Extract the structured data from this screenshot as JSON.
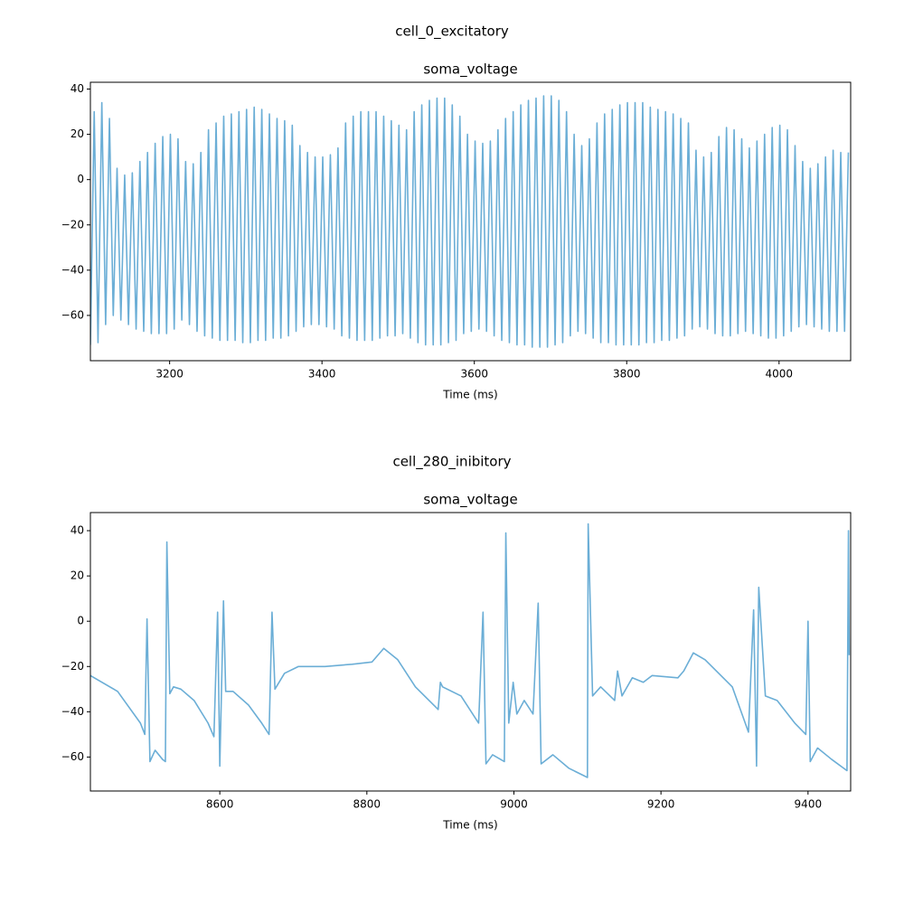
{
  "chart_data": [
    {
      "type": "line",
      "figure_title": "cell_0_excitatory",
      "title": "soma_voltage",
      "xlabel": "Time (ms)",
      "color": "#6baed6",
      "xlim": [
        3096,
        4094
      ],
      "ylim": [
        -80,
        43
      ],
      "xticks": [
        3200,
        3400,
        3600,
        3800,
        4000
      ],
      "yticks": [
        {
          "value": -60,
          "label": "−60"
        },
        {
          "value": -40,
          "label": "−40"
        },
        {
          "value": -20,
          "label": "−20"
        },
        0,
        20,
        40
      ],
      "x": [
        3096,
        3101,
        3106,
        3111,
        3116,
        3121,
        3126,
        3131,
        3136,
        3141,
        3146,
        3151,
        3156,
        3161,
        3166,
        3171,
        3176,
        3181,
        3186,
        3191,
        3196,
        3201,
        3206,
        3211,
        3216,
        3221,
        3226,
        3231,
        3236,
        3241,
        3246,
        3251,
        3256,
        3261,
        3266,
        3271,
        3276,
        3281,
        3286,
        3291,
        3296,
        3301,
        3306,
        3311,
        3316,
        3321,
        3326,
        3331,
        3336,
        3341,
        3346,
        3351,
        3356,
        3361,
        3366,
        3371,
        3376,
        3381,
        3386,
        3391,
        3396,
        3401,
        3406,
        3411,
        3416,
        3421,
        3426,
        3431,
        3436,
        3441,
        3446,
        3451,
        3456,
        3461,
        3466,
        3471,
        3476,
        3481,
        3486,
        3491,
        3496,
        3501,
        3506,
        3511,
        3516,
        3521,
        3526,
        3531,
        3536,
        3541,
        3546,
        3551,
        3556,
        3561,
        3566,
        3571,
        3576,
        3581,
        3586,
        3591,
        3596,
        3601,
        3606,
        3611,
        3616,
        3621,
        3626,
        3631,
        3636,
        3641,
        3646,
        3651,
        3656,
        3661,
        3666,
        3671,
        3676,
        3681,
        3686,
        3691,
        3696,
        3701,
        3706,
        3711,
        3716,
        3721,
        3726,
        3731,
        3736,
        3741,
        3746,
        3751,
        3756,
        3761,
        3766,
        3771,
        3776,
        3781,
        3786,
        3791,
        3796,
        3801,
        3806,
        3811,
        3816,
        3821,
        3826,
        3831,
        3836,
        3841,
        3846,
        3851,
        3856,
        3861,
        3866,
        3871,
        3876,
        3881,
        3886,
        3891,
        3896,
        3901,
        3906,
        3911,
        3916,
        3921,
        3926,
        3931,
        3936,
        3941,
        3946,
        3951,
        3956,
        3961,
        3966,
        3971,
        3976,
        3981,
        3986,
        3991,
        3996,
        4001,
        4006,
        4011,
        4016,
        4021,
        4026,
        4031,
        4036,
        4041,
        4046,
        4051,
        4056,
        4061,
        4066,
        4071,
        4076,
        4081,
        4086,
        4091
      ],
      "values": [
        -73,
        30,
        -72,
        34,
        -64,
        27,
        -60,
        5,
        -62,
        2,
        -64,
        3,
        -66,
        8,
        -67,
        12,
        -68,
        16,
        -68,
        19,
        -68,
        20,
        -66,
        18,
        -62,
        8,
        -64,
        7,
        -67,
        12,
        -69,
        22,
        -70,
        25,
        -71,
        28,
        -71,
        29,
        -71,
        30,
        -72,
        31,
        -72,
        32,
        -71,
        31,
        -71,
        29,
        -70,
        27,
        -70,
        26,
        -69,
        24,
        -67,
        15,
        -65,
        12,
        -64,
        10,
        -64,
        10,
        -65,
        11,
        -66,
        14,
        -69,
        25,
        -70,
        28,
        -71,
        30,
        -71,
        30,
        -71,
        30,
        -70,
        28,
        -69,
        26,
        -69,
        24,
        -68,
        22,
        -70,
        30,
        -72,
        33,
        -73,
        35,
        -73,
        36,
        -73,
        36,
        -72,
        33,
        -71,
        28,
        -68,
        20,
        -67,
        17,
        -66,
        16,
        -67,
        17,
        -69,
        22,
        -71,
        27,
        -72,
        30,
        -73,
        33,
        -73,
        35,
        -74,
        36,
        -74,
        37,
        -74,
        37,
        -73,
        35,
        -72,
        30,
        -69,
        20,
        -67,
        15,
        -68,
        18,
        -70,
        25,
        -72,
        29,
        -72,
        31,
        -73,
        33,
        -73,
        34,
        -73,
        34,
        -73,
        34,
        -72,
        32,
        -72,
        31,
        -71,
        30,
        -71,
        29,
        -70,
        27,
        -69,
        25,
        -66,
        13,
        -65,
        10,
        -66,
        12,
        -68,
        19,
        -69,
        23,
        -69,
        22,
        -68,
        18,
        -67,
        14,
        -68,
        17,
        -69,
        20,
        -70,
        23,
        -70,
        24,
        -69,
        22,
        -67,
        15,
        -65,
        8,
        -64,
        5,
        -65,
        7,
        -66,
        10,
        -67,
        13,
        -67,
        12,
        -67,
        12
      ]
    },
    {
      "type": "line",
      "figure_title": "cell_280_inibitory",
      "title": "soma_voltage",
      "xlabel": "Time (ms)",
      "color": "#6baed6",
      "xlim": [
        8424,
        9458
      ],
      "ylim": [
        -75,
        48
      ],
      "xticks": [
        8600,
        8800,
        9000,
        9200,
        9400
      ],
      "yticks": [
        {
          "value": -60,
          "label": "−60"
        },
        {
          "value": -40,
          "label": "−40"
        },
        {
          "value": -20,
          "label": "−20"
        },
        0,
        20,
        40
      ],
      "x": [
        8424,
        8461,
        8492,
        8498,
        8501,
        8505,
        8512,
        8522,
        8526,
        8528,
        8532,
        8537,
        8547,
        8565,
        8584,
        8592,
        8597,
        8600,
        8605,
        8608,
        8618,
        8639,
        8657,
        8667,
        8671,
        8675,
        8688,
        8707,
        8743,
        8780,
        8807,
        8823,
        8842,
        8866,
        8897,
        8900,
        8903,
        8928,
        8952,
        8958,
        8962,
        8971,
        8987,
        8989,
        8993,
        8999,
        9004,
        9014,
        9026,
        9033,
        9037,
        9053,
        9075,
        9100,
        9101,
        9107,
        9118,
        9137,
        9141,
        9147,
        9161,
        9176,
        9188,
        9223,
        9231,
        9244,
        9260,
        9297,
        9319,
        9326,
        9330,
        9333,
        9342,
        9358,
        9382,
        9397,
        9400,
        9403,
        9413,
        9432,
        9453,
        9455,
        9456
      ],
      "values": [
        -24,
        -31,
        -45,
        -50,
        1,
        -62,
        -57,
        -61,
        -62,
        35,
        -32,
        -29,
        -30,
        -35,
        -45,
        -51,
        4,
        -64,
        9,
        -31,
        -31,
        -37,
        -45,
        -50,
        4,
        -30,
        -23,
        -20,
        -20,
        -19,
        -18,
        -12,
        -17,
        -29,
        -39,
        -27,
        -29,
        -33,
        -45,
        4,
        -63,
        -59,
        -62,
        39,
        -45,
        -27,
        -41,
        -35,
        -41,
        8,
        -63,
        -59,
        -65,
        -69,
        43,
        -33,
        -29,
        -35,
        -22,
        -33,
        -25,
        -27,
        -24,
        -25,
        -22,
        -14,
        -17,
        -29,
        -49,
        5,
        -64,
        15,
        -33,
        -35,
        -45,
        -50,
        0,
        -62,
        -56,
        -61,
        -66,
        40,
        -15
      ]
    }
  ]
}
